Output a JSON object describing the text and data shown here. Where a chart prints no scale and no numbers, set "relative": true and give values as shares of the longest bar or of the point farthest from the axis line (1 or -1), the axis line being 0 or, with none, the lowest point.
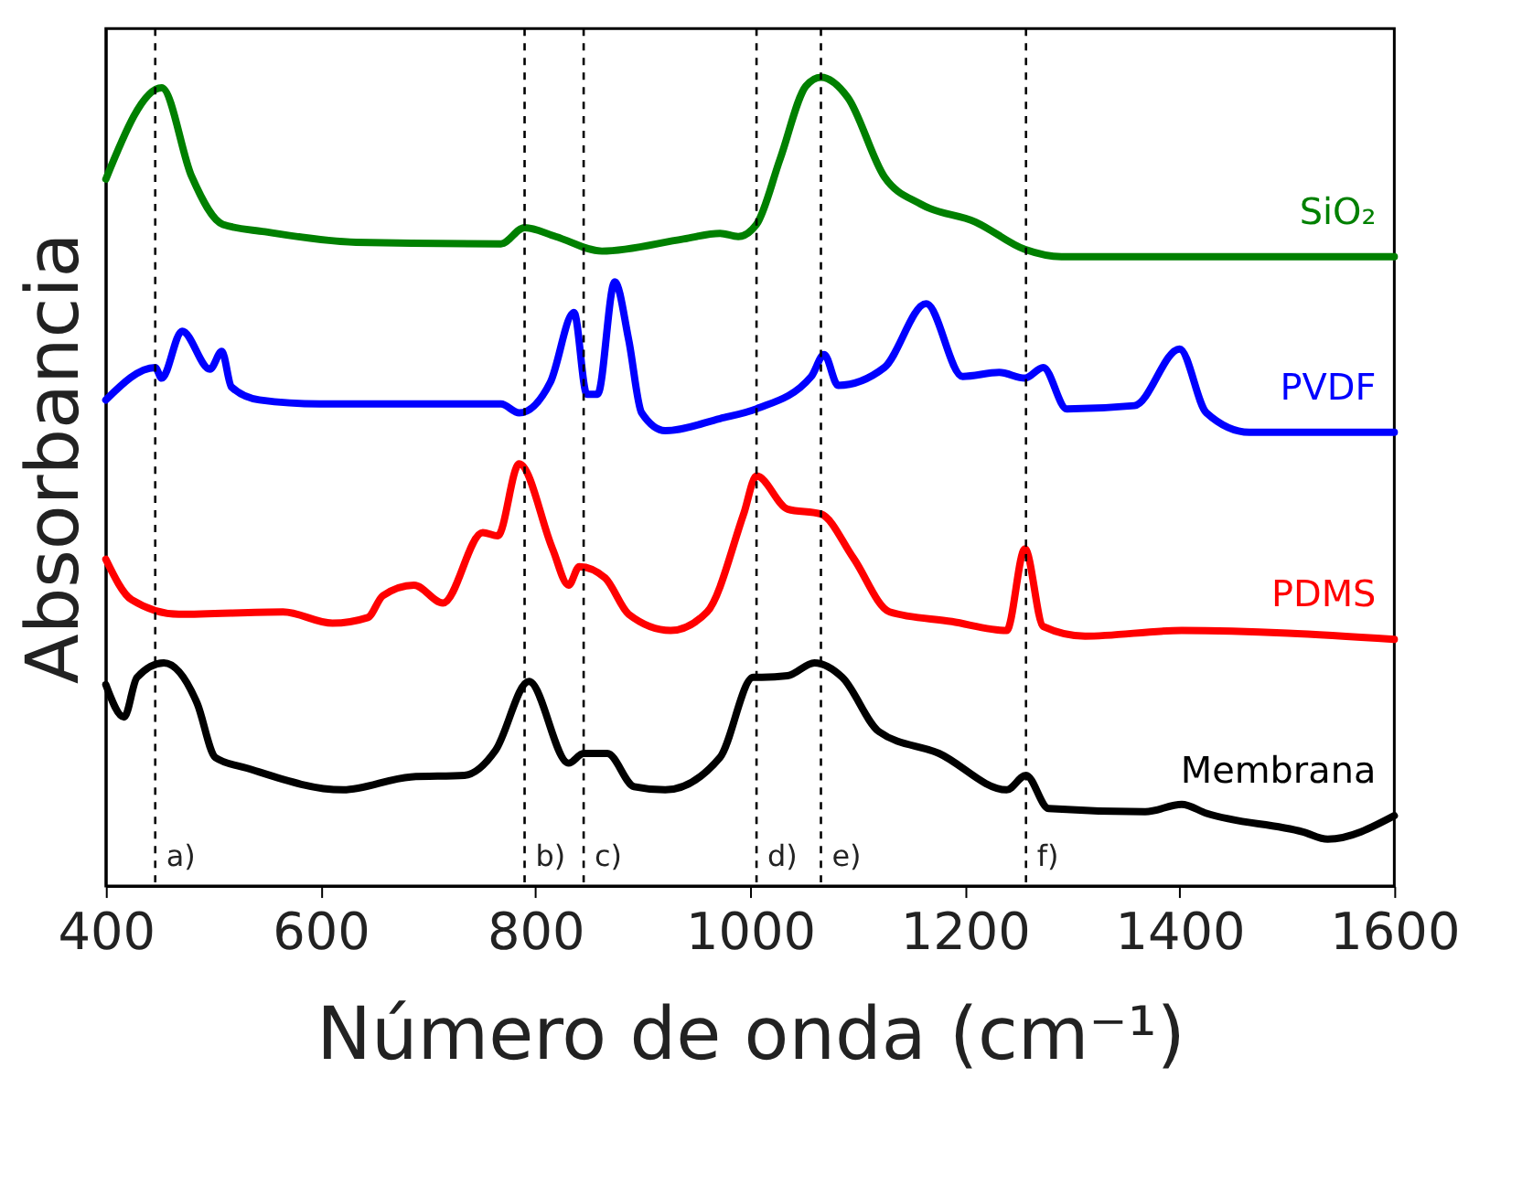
{
  "chart_data": {
    "type": "line",
    "relative": true,
    "xlabel": "Número de onda (cm⁻¹)",
    "ylabel": "Absorbancia",
    "xlim": [
      400,
      1600
    ],
    "xticks": [
      400,
      600,
      800,
      1000,
      1200,
      1400,
      1600
    ],
    "grid": false,
    "legend": false,
    "marker": "none",
    "line_style": "solid",
    "series": [
      {
        "name": "SiO₂",
        "color": "#008000",
        "x": [
          400,
          452,
          480,
          509,
          548,
          633,
          768,
          790,
          819,
          862,
          938,
          972,
          989,
          1006,
          1028,
          1052,
          1066,
          1091,
          1125,
          1159,
          1210,
          1256,
          1290,
          1600
        ],
        "values": [
          0.874,
          0.987,
          0.877,
          0.818,
          0.809,
          0.796,
          0.794,
          0.814,
          0.803,
          0.785,
          0.8,
          0.807,
          0.803,
          0.818,
          0.899,
          0.989,
          1.0,
          0.975,
          0.877,
          0.843,
          0.821,
          0.787,
          0.778,
          0.778
        ]
      },
      {
        "name": "PVDF",
        "color": "#0000ff",
        "x": [
          400,
          446,
          452,
          471,
          497,
          508,
          517,
          543,
          599,
          684,
          768,
          785,
          814,
          836,
          848,
          858,
          874,
          887,
          899,
          921,
          972,
          1006,
          1057,
          1069,
          1082,
          1125,
          1164,
          1198,
          1232,
          1256,
          1273,
          1295,
          1358,
          1400,
          1425,
          1465,
          1600
        ],
        "values": [
          0.601,
          0.641,
          0.628,
          0.686,
          0.639,
          0.661,
          0.617,
          0.601,
          0.596,
          0.596,
          0.596,
          0.585,
          0.623,
          0.709,
          0.608,
          0.608,
          0.747,
          0.675,
          0.585,
          0.563,
          0.578,
          0.59,
          0.63,
          0.657,
          0.619,
          0.641,
          0.72,
          0.63,
          0.635,
          0.628,
          0.641,
          0.59,
          0.594,
          0.664,
          0.585,
          0.561,
          0.561
        ]
      },
      {
        "name": "PDMS",
        "color": "#ff0000",
        "x": [
          400,
          424,
          468,
          565,
          611,
          644,
          658,
          687,
          714,
          751,
          765,
          785,
          816,
          831,
          841,
          865,
          887,
          926,
          960,
          994,
          1006,
          1035,
          1066,
          1096,
          1130,
          1188,
          1239,
          1256,
          1273,
          1312,
          1402,
          1600
        ],
        "values": [
          0.404,
          0.354,
          0.336,
          0.339,
          0.325,
          0.332,
          0.359,
          0.372,
          0.35,
          0.437,
          0.433,
          0.522,
          0.417,
          0.372,
          0.395,
          0.381,
          0.336,
          0.316,
          0.339,
          0.46,
          0.507,
          0.466,
          0.46,
          0.406,
          0.339,
          0.327,
          0.316,
          0.417,
          0.321,
          0.309,
          0.316,
          0.305
        ]
      },
      {
        "name": "Membrana",
        "color": "#000000",
        "x": [
          400,
          417,
          429,
          454,
          485,
          502,
          531,
          621,
          684,
          734,
          763,
          794,
          831,
          845,
          867,
          892,
          921,
          972,
          1003,
          1011,
          1035,
          1060,
          1086,
          1120,
          1176,
          1239,
          1257,
          1278,
          1368,
          1402,
          1425,
          1515,
          1538,
          1600
        ],
        "values": [
          0.249,
          0.209,
          0.258,
          0.276,
          0.226,
          0.159,
          0.146,
          0.119,
          0.135,
          0.137,
          0.168,
          0.253,
          0.152,
          0.164,
          0.164,
          0.123,
          0.119,
          0.159,
          0.258,
          0.258,
          0.26,
          0.276,
          0.258,
          0.191,
          0.164,
          0.119,
          0.137,
          0.096,
          0.092,
          0.101,
          0.09,
          0.067,
          0.058,
          0.087
        ]
      }
    ],
    "ref_lines": [
      {
        "axis": "x",
        "value": 446,
        "label": "a)",
        "color": "#000000",
        "line_style": "dashed"
      },
      {
        "axis": "x",
        "value": 790,
        "label": "b)",
        "color": "#000000",
        "line_style": "dashed"
      },
      {
        "axis": "x",
        "value": 845,
        "label": "c)",
        "color": "#000000",
        "line_style": "dashed"
      },
      {
        "axis": "x",
        "value": 1006,
        "label": "d)",
        "color": "#000000",
        "line_style": "dashed"
      },
      {
        "axis": "x",
        "value": 1066,
        "label": "e)",
        "color": "#000000",
        "line_style": "dashed"
      },
      {
        "axis": "x",
        "value": 1257,
        "label": "f)",
        "color": "#000000",
        "line_style": "dashed"
      }
    ]
  }
}
